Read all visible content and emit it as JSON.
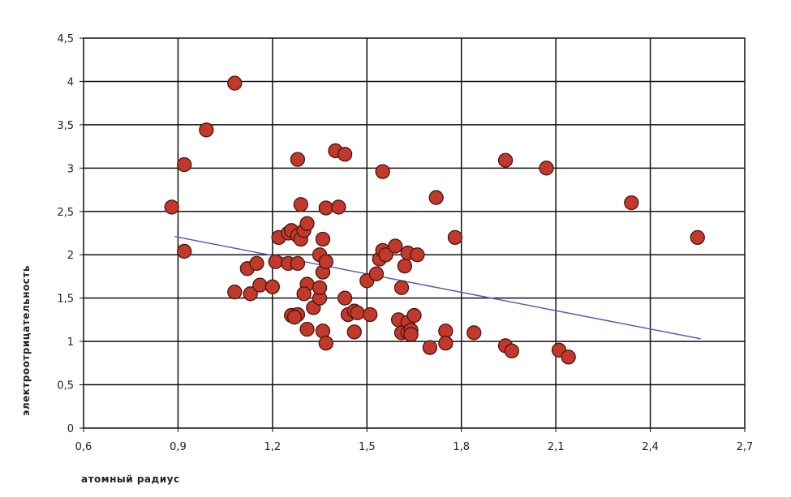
{
  "chart_data": {
    "type": "scatter",
    "xlabel": "атомный радиус",
    "ylabel": "электроотрицательность",
    "xlim": [
      0.6,
      2.7
    ],
    "ylim": [
      0,
      4.5
    ],
    "x_ticks": [
      "0,6",
      "0,9",
      "1,2",
      "1,5",
      "1,8",
      "2,1",
      "2,4",
      "2,7"
    ],
    "y_ticks": [
      "0",
      "0,5",
      "1",
      "1,5",
      "2",
      "2,5",
      "3",
      "3,5",
      "4",
      "4,5"
    ],
    "grid": true,
    "point_color": "#c0392b",
    "point_edge_color": "#4a1510",
    "trendline_color": "#5a5fb0",
    "trendline": {
      "x": [
        0.89,
        2.56
      ],
      "y": [
        2.21,
        1.03
      ]
    },
    "points": [
      {
        "x": 1.08,
        "y": 3.98
      },
      {
        "x": 0.99,
        "y": 3.44
      },
      {
        "x": 0.92,
        "y": 3.04
      },
      {
        "x": 0.88,
        "y": 2.55
      },
      {
        "x": 0.92,
        "y": 2.04
      },
      {
        "x": 1.08,
        "y": 1.57
      },
      {
        "x": 1.13,
        "y": 1.55
      },
      {
        "x": 1.12,
        "y": 1.84
      },
      {
        "x": 1.15,
        "y": 1.9
      },
      {
        "x": 1.16,
        "y": 1.65
      },
      {
        "x": 1.2,
        "y": 1.63
      },
      {
        "x": 1.21,
        "y": 1.92
      },
      {
        "x": 1.22,
        "y": 2.2
      },
      {
        "x": 1.25,
        "y": 2.25
      },
      {
        "x": 1.26,
        "y": 2.28
      },
      {
        "x": 1.28,
        "y": 2.22
      },
      {
        "x": 1.29,
        "y": 2.18
      },
      {
        "x": 1.3,
        "y": 2.28
      },
      {
        "x": 1.31,
        "y": 2.36
      },
      {
        "x": 1.25,
        "y": 1.9
      },
      {
        "x": 1.28,
        "y": 1.9
      },
      {
        "x": 1.29,
        "y": 2.58
      },
      {
        "x": 1.28,
        "y": 3.1
      },
      {
        "x": 1.31,
        "y": 1.66
      },
      {
        "x": 1.3,
        "y": 1.55
      },
      {
        "x": 1.26,
        "y": 1.3
      },
      {
        "x": 1.28,
        "y": 1.31
      },
      {
        "x": 1.27,
        "y": 1.28
      },
      {
        "x": 1.31,
        "y": 1.14
      },
      {
        "x": 1.33,
        "y": 1.39
      },
      {
        "x": 1.35,
        "y": 1.5
      },
      {
        "x": 1.35,
        "y": 1.62
      },
      {
        "x": 1.36,
        "y": 1.8
      },
      {
        "x": 1.35,
        "y": 2.0
      },
      {
        "x": 1.37,
        "y": 1.92
      },
      {
        "x": 1.36,
        "y": 2.18
      },
      {
        "x": 1.37,
        "y": 2.54
      },
      {
        "x": 1.41,
        "y": 2.55
      },
      {
        "x": 1.4,
        "y": 3.2
      },
      {
        "x": 1.43,
        "y": 3.16
      },
      {
        "x": 1.36,
        "y": 1.12
      },
      {
        "x": 1.37,
        "y": 0.98
      },
      {
        "x": 1.43,
        "y": 1.5
      },
      {
        "x": 1.44,
        "y": 1.31
      },
      {
        "x": 1.46,
        "y": 1.35
      },
      {
        "x": 1.47,
        "y": 1.33
      },
      {
        "x": 1.46,
        "y": 1.11
      },
      {
        "x": 1.5,
        "y": 1.7
      },
      {
        "x": 1.51,
        "y": 1.31
      },
      {
        "x": 1.53,
        "y": 1.78
      },
      {
        "x": 1.54,
        "y": 1.95
      },
      {
        "x": 1.55,
        "y": 2.05
      },
      {
        "x": 1.56,
        "y": 2.0
      },
      {
        "x": 1.55,
        "y": 2.96
      },
      {
        "x": 1.59,
        "y": 2.1
      },
      {
        "x": 1.62,
        "y": 1.87
      },
      {
        "x": 1.63,
        "y": 2.02
      },
      {
        "x": 1.66,
        "y": 2.0
      },
      {
        "x": 1.61,
        "y": 1.62
      },
      {
        "x": 1.6,
        "y": 1.25
      },
      {
        "x": 1.63,
        "y": 1.22
      },
      {
        "x": 1.65,
        "y": 1.3
      },
      {
        "x": 1.61,
        "y": 1.1
      },
      {
        "x": 1.63,
        "y": 1.1
      },
      {
        "x": 1.64,
        "y": 1.13
      },
      {
        "x": 1.64,
        "y": 1.08
      },
      {
        "x": 1.7,
        "y": 0.93
      },
      {
        "x": 1.72,
        "y": 2.66
      },
      {
        "x": 1.75,
        "y": 1.12
      },
      {
        "x": 1.75,
        "y": 0.98
      },
      {
        "x": 1.78,
        "y": 2.2
      },
      {
        "x": 1.84,
        "y": 1.1
      },
      {
        "x": 1.94,
        "y": 3.09
      },
      {
        "x": 1.94,
        "y": 0.95
      },
      {
        "x": 1.96,
        "y": 0.89
      },
      {
        "x": 2.07,
        "y": 3.0
      },
      {
        "x": 2.11,
        "y": 0.9
      },
      {
        "x": 2.14,
        "y": 0.82
      },
      {
        "x": 2.34,
        "y": 2.6
      },
      {
        "x": 2.55,
        "y": 2.2
      }
    ]
  }
}
